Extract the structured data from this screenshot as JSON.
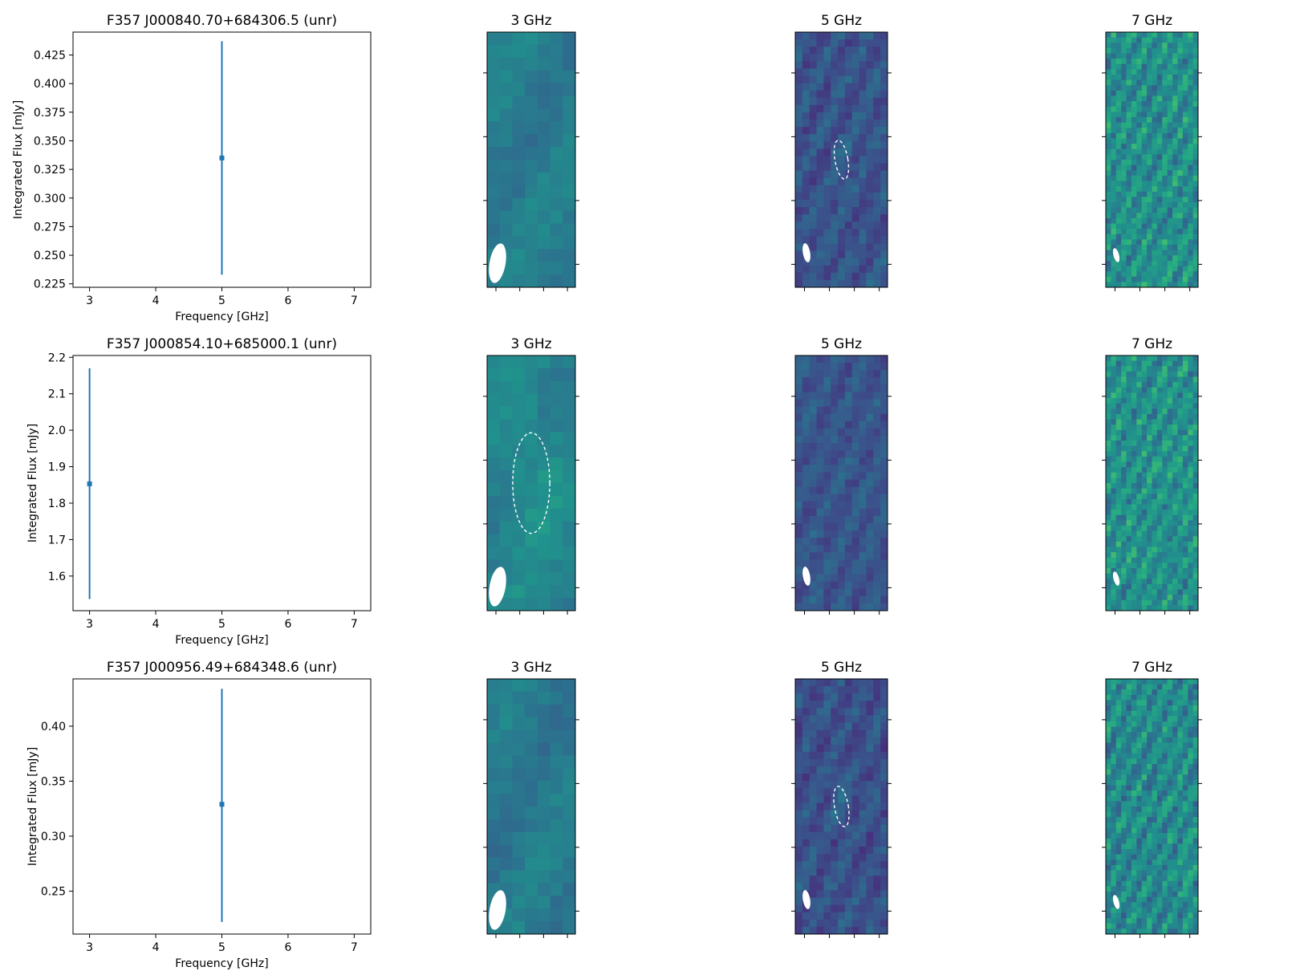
{
  "figure": {
    "accent_color": "#1f77b4",
    "colormap": "viridis",
    "contour_color": "#ffffff",
    "beam_color": "#ffffff"
  },
  "chart_data": [
    {
      "type": "scatter",
      "title": "F357 J000840.70+684306.5 (unr)",
      "xlabel": "Frequency [GHz]",
      "ylabel": "Integrated Flux [mJy]",
      "xlim": [
        2.75,
        7.25
      ],
      "ylim": [
        0.222,
        0.445
      ],
      "xticks": [
        3,
        4,
        5,
        6,
        7
      ],
      "yticks": [
        0.225,
        0.25,
        0.275,
        0.3,
        0.325,
        0.35,
        0.375,
        0.4,
        0.425
      ],
      "ytick_labels": [
        "0.225",
        "0.250",
        "0.275",
        "0.300",
        "0.325",
        "0.350",
        "0.375",
        "0.400",
        "0.425"
      ],
      "series": [
        {
          "x": [
            5
          ],
          "y": [
            0.335
          ],
          "yerr_low": [
            0.233
          ],
          "yerr_high": [
            0.437
          ]
        }
      ]
    },
    {
      "type": "scatter",
      "title": "F357 J000854.10+685000.1 (unr)",
      "xlabel": "Frequency [GHz]",
      "ylabel": "Integrated Flux [mJy]",
      "xlim": [
        2.75,
        7.25
      ],
      "ylim": [
        1.505,
        2.205
      ],
      "xticks": [
        3,
        4,
        5,
        6,
        7
      ],
      "yticks": [
        1.6,
        1.7,
        1.8,
        1.9,
        2.0,
        2.1,
        2.2
      ],
      "ytick_labels": [
        "1.6",
        "1.7",
        "1.8",
        "1.9",
        "2.0",
        "2.1",
        "2.2"
      ],
      "series": [
        {
          "x": [
            3
          ],
          "y": [
            1.853
          ],
          "yerr_low": [
            1.537
          ],
          "yerr_high": [
            2.17
          ]
        }
      ]
    },
    {
      "type": "scatter",
      "title": "F357 J000956.49+684348.6 (unr)",
      "xlabel": "Frequency [GHz]",
      "ylabel": "Integrated Flux [mJy]",
      "xlim": [
        2.75,
        7.25
      ],
      "ylim": [
        0.211,
        0.443
      ],
      "xticks": [
        3,
        4,
        5,
        6,
        7
      ],
      "yticks": [
        0.25,
        0.3,
        0.35,
        0.4
      ],
      "ytick_labels": [
        "0.25",
        "0.30",
        "0.35",
        "0.40"
      ],
      "series": [
        {
          "x": [
            5
          ],
          "y": [
            0.329
          ],
          "yerr_low": [
            0.222
          ],
          "yerr_high": [
            0.434
          ]
        }
      ]
    },
    {
      "type": "heatmap",
      "title": "3 GHz",
      "row": 0,
      "col": 1,
      "grid_cols": 7,
      "grid_rows": 20,
      "mean": 0.42,
      "contrast": 0.05,
      "stripe": 0.3,
      "contour": null
    },
    {
      "type": "heatmap",
      "title": "5 GHz",
      "row": 0,
      "col": 2,
      "grid_cols": 13,
      "grid_rows": 35,
      "mean": 0.26,
      "contrast": 0.07,
      "stripe": 0.6,
      "contour": {
        "cx": 0.5,
        "cy": 0.5,
        "rx": 0.07,
        "ry": 0.077,
        "angle": -10
      }
    },
    {
      "type": "heatmap",
      "title": "7 GHz",
      "row": 0,
      "col": 3,
      "grid_cols": 18,
      "grid_rows": 48,
      "mean": 0.5,
      "contrast": 0.12,
      "stripe": 0.7,
      "contour": null
    },
    {
      "type": "heatmap",
      "title": "3 GHz",
      "row": 1,
      "col": 1,
      "grid_cols": 7,
      "grid_rows": 20,
      "mean": 0.45,
      "contrast": 0.05,
      "stripe": 0.3,
      "contour": {
        "cx": 0.5,
        "cy": 0.5,
        "rx": 0.21,
        "ry": 0.197,
        "angle": 0
      }
    },
    {
      "type": "heatmap",
      "title": "5 GHz",
      "row": 1,
      "col": 2,
      "grid_cols": 13,
      "grid_rows": 35,
      "mean": 0.27,
      "contrast": 0.06,
      "stripe": 0.6,
      "contour": null
    },
    {
      "type": "heatmap",
      "title": "7 GHz",
      "row": 1,
      "col": 3,
      "grid_cols": 18,
      "grid_rows": 48,
      "mean": 0.5,
      "contrast": 0.12,
      "stripe": 0.7,
      "contour": null
    },
    {
      "type": "heatmap",
      "title": "3 GHz",
      "row": 2,
      "col": 1,
      "grid_cols": 7,
      "grid_rows": 20,
      "mean": 0.41,
      "contrast": 0.05,
      "stripe": 0.3,
      "contour": null
    },
    {
      "type": "heatmap",
      "title": "5 GHz",
      "row": 2,
      "col": 2,
      "grid_cols": 13,
      "grid_rows": 35,
      "mean": 0.25,
      "contrast": 0.07,
      "stripe": 0.6,
      "contour": {
        "cx": 0.5,
        "cy": 0.5,
        "rx": 0.075,
        "ry": 0.08,
        "angle": -10
      }
    },
    {
      "type": "heatmap",
      "title": "7 GHz",
      "row": 2,
      "col": 3,
      "grid_cols": 18,
      "grid_rows": 48,
      "mean": 0.48,
      "contrast": 0.12,
      "stripe": 0.7,
      "contour": null
    }
  ]
}
